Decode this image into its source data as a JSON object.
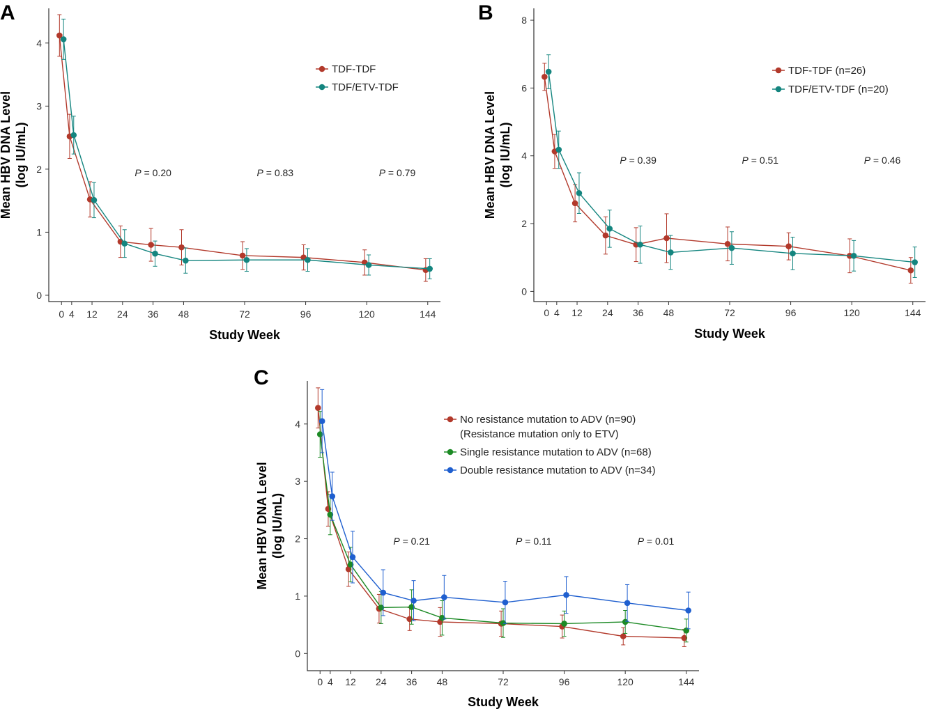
{
  "colors": {
    "red": "#b2392b",
    "teal": "#14857f",
    "green": "#1c8a25",
    "blue": "#1f5fcf"
  },
  "chart_data": [
    {
      "panel": "A",
      "type": "line",
      "xlabel": "Study Week",
      "ylabel": [
        "Mean HBV DNA Level",
        "(log IU/mL)"
      ],
      "ylim": [
        -0.1,
        4.55
      ],
      "yticks": [
        0,
        1,
        2,
        3,
        4
      ],
      "xlim": [
        -5,
        149
      ],
      "xticks": [
        0,
        4,
        12,
        24,
        36,
        48,
        72,
        96,
        120,
        144
      ],
      "grid": false,
      "legend_position": "top-right",
      "pvalues": [
        {
          "x": 36,
          "p": "P",
          "text": " = 0.20"
        },
        {
          "x": 84,
          "p": "P",
          "text": " = 0.83"
        },
        {
          "x": 132,
          "p": "P",
          "text": " = 0.79"
        }
      ],
      "series": [
        {
          "name": "TDF-TDF",
          "color": "red",
          "offset": -0.8,
          "x": [
            0,
            4,
            12,
            24,
            36,
            48,
            72,
            96,
            120,
            144
          ],
          "y": [
            4.12,
            2.52,
            1.52,
            0.85,
            0.8,
            0.76,
            0.63,
            0.6,
            0.52,
            0.4
          ],
          "err": [
            0.33,
            0.35,
            0.28,
            0.25,
            0.26,
            0.28,
            0.22,
            0.2,
            0.2,
            0.18
          ]
        },
        {
          "name": "TDF/ETV-TDF",
          "color": "teal",
          "offset": 0.8,
          "x": [
            0,
            4,
            12,
            24,
            36,
            48,
            72,
            96,
            120,
            144
          ],
          "y": [
            4.06,
            2.54,
            1.51,
            0.82,
            0.66,
            0.55,
            0.56,
            0.56,
            0.48,
            0.42
          ],
          "err": [
            0.32,
            0.3,
            0.28,
            0.22,
            0.2,
            0.2,
            0.18,
            0.18,
            0.16,
            0.16
          ]
        }
      ]
    },
    {
      "panel": "B",
      "type": "line",
      "xlabel": "Study Week",
      "ylabel": [
        "Mean HBV DNA Level",
        "(log IU/mL)"
      ],
      "ylim": [
        -0.3,
        8.35
      ],
      "yticks": [
        0,
        2,
        4,
        6,
        8
      ],
      "xlim": [
        -5,
        149
      ],
      "xticks": [
        0,
        4,
        12,
        24,
        36,
        48,
        72,
        96,
        120,
        144
      ],
      "grid": false,
      "legend_position": "top-right",
      "pvalues": [
        {
          "x": 36,
          "p": "P",
          "text": " = 0.39"
        },
        {
          "x": 84,
          "p": "P",
          "text": " = 0.51"
        },
        {
          "x": 132,
          "p": "P",
          "text": " = 0.46"
        }
      ],
      "series": [
        {
          "name": "TDF-TDF (n=26)",
          "color": "red",
          "offset": -0.8,
          "x": [
            0,
            4,
            12,
            24,
            36,
            48,
            72,
            96,
            120,
            144
          ],
          "y": [
            6.33,
            4.13,
            2.6,
            1.65,
            1.38,
            1.57,
            1.4,
            1.33,
            1.05,
            0.62
          ],
          "err": [
            0.4,
            0.5,
            0.55,
            0.55,
            0.5,
            0.72,
            0.5,
            0.4,
            0.5,
            0.38
          ]
        },
        {
          "name": "TDF/ETV-TDF (n=20)",
          "color": "teal",
          "offset": 0.8,
          "x": [
            0,
            4,
            12,
            24,
            36,
            48,
            72,
            96,
            120,
            144
          ],
          "y": [
            6.48,
            4.18,
            2.9,
            1.85,
            1.38,
            1.15,
            1.28,
            1.12,
            1.05,
            0.86
          ],
          "err": [
            0.5,
            0.55,
            0.6,
            0.55,
            0.55,
            0.5,
            0.48,
            0.48,
            0.45,
            0.45
          ]
        }
      ]
    },
    {
      "panel": "C",
      "type": "line",
      "xlabel": "Study Week",
      "ylabel": [
        "Mean HBV DNA Level",
        "(log IU/mL)"
      ],
      "ylim": [
        -0.3,
        4.75
      ],
      "yticks": [
        0,
        1,
        2,
        3,
        4
      ],
      "xlim": [
        -5,
        149
      ],
      "xticks": [
        0,
        4,
        12,
        24,
        36,
        48,
        72,
        96,
        120,
        144
      ],
      "grid": false,
      "legend_position": "top-right",
      "pvalues": [
        {
          "x": 36,
          "p": "P",
          "text": " = 0.21"
        },
        {
          "x": 84,
          "p": "P",
          "text": " = 0.11"
        },
        {
          "x": 132,
          "p": "P",
          "text": " = 0.01"
        }
      ],
      "series": [
        {
          "name": "No resistance mutation to ADV (n=90)",
          "name_line2": "(Resistance mutation only to ETV)",
          "color": "red",
          "offset": -0.8,
          "x": [
            0,
            4,
            12,
            24,
            36,
            48,
            72,
            96,
            120,
            144
          ],
          "y": [
            4.28,
            2.52,
            1.47,
            0.78,
            0.6,
            0.55,
            0.52,
            0.47,
            0.3,
            0.27
          ],
          "err": [
            0.35,
            0.3,
            0.3,
            0.25,
            0.2,
            0.25,
            0.22,
            0.2,
            0.15,
            0.15
          ]
        },
        {
          "name": "Single resistance mutation to ADV (n=68)",
          "color": "green",
          "offset": 0,
          "x": [
            0,
            4,
            12,
            24,
            36,
            48,
            72,
            96,
            120,
            144
          ],
          "y": [
            3.82,
            2.42,
            1.55,
            0.8,
            0.81,
            0.62,
            0.53,
            0.52,
            0.55,
            0.4
          ],
          "err": [
            0.4,
            0.35,
            0.3,
            0.28,
            0.3,
            0.3,
            0.25,
            0.22,
            0.2,
            0.2
          ]
        },
        {
          "name": "Double resistance mutation to ADV (n=34)",
          "color": "blue",
          "offset": 0.8,
          "x": [
            0,
            4,
            12,
            24,
            36,
            48,
            72,
            96,
            120,
            144
          ],
          "y": [
            4.05,
            2.74,
            1.68,
            1.06,
            0.92,
            0.98,
            0.89,
            1.02,
            0.88,
            0.75
          ],
          "err": [
            0.55,
            0.42,
            0.45,
            0.4,
            0.35,
            0.38,
            0.37,
            0.32,
            0.32,
            0.32
          ]
        }
      ]
    }
  ]
}
